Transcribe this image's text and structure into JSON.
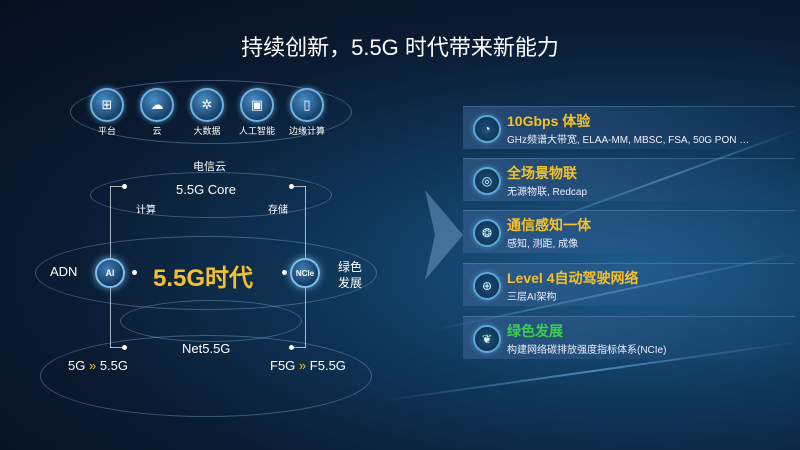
{
  "title": "持续创新，5.5G 时代带来新能力",
  "colors": {
    "accent_yellow": "#f5c02c",
    "accent_green": "#3ccf4e",
    "background": "#0a1a30"
  },
  "diagram": {
    "top_icons": [
      {
        "label": "平台",
        "icon": "platform-icon"
      },
      {
        "label": "云",
        "icon": "cloud-icon"
      },
      {
        "label": "大数据",
        "icon": "big-data-icon"
      },
      {
        "label": "人工智能",
        "icon": "ai-chip-icon"
      },
      {
        "label": "边缘计算",
        "icon": "edge-computing-icon"
      }
    ],
    "telecom_cloud": "电信云",
    "core": "5.5G Core",
    "compute": "计算",
    "storage": "存储",
    "center": "5.5G时代",
    "left_label": "ADN",
    "left_badge": "AI",
    "right_badge": "NCIe",
    "right_label_1": "绿色",
    "right_label_2": "发展",
    "net": "Net5.5G",
    "bottom_left": {
      "from": "5G",
      "arrow": "»",
      "to": "5.5G"
    },
    "bottom_right": {
      "from": "F5G",
      "arrow": "»",
      "to": "F5.5G"
    }
  },
  "capabilities": [
    {
      "title": "10Gbps 体验",
      "subtitle": "GHz频谱大带宽, ELAA-MM, MBSC, FSA, 50G PON …",
      "icon": "speedometer-icon",
      "color": "#f5c02c"
    },
    {
      "title": "全场景物联",
      "subtitle": "无源物联, Redcap",
      "icon": "iot-network-icon",
      "color": "#f5c02c"
    },
    {
      "title": "通信感知一体",
      "subtitle": "感知, 测距, 成像",
      "icon": "sensing-icon",
      "color": "#f5c02c"
    },
    {
      "title": "Level 4自动驾驶网络",
      "subtitle": "三层AI架构",
      "icon": "globe-network-icon",
      "color": "#f5c02c"
    },
    {
      "title": "绿色发展",
      "subtitle": "构建网络碳排放强度指标体系(NCIe)",
      "icon": "leaf-icon",
      "color": "#3ccf4e"
    }
  ]
}
